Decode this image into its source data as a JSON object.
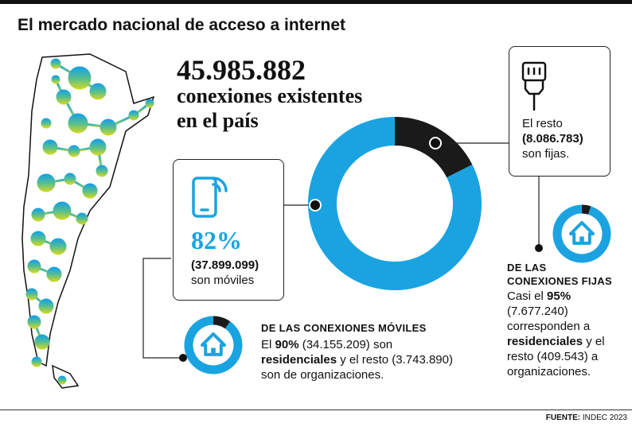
{
  "header": {
    "title": "El mercado nacional de acceso a internet"
  },
  "headline": {
    "total": "45.985.882",
    "line1": "conexiones existentes",
    "line2": "en el país"
  },
  "mobile": {
    "pct": "82%",
    "count": "(37.899.099)",
    "label": "son móviles"
  },
  "fixed": {
    "line1": "El resto",
    "count": "(8.086.783)",
    "line2": "son fijas."
  },
  "mobile_detail": {
    "heading": "DE LAS CONEXIONES MÓVILES",
    "l1a": "El ",
    "l1b": "90%",
    "l1c": " (34.155.209) son",
    "l2a": "residenciales",
    "l2b": " y el resto (3.743.890)",
    "l3": "son de organizaciones."
  },
  "fixed_detail": {
    "heading1": "DE LAS",
    "heading2": "CONEXIONES FIJAS",
    "l1a": "Casi el ",
    "l1b": "95%",
    "l2": "(7.677.240)",
    "l3": "corresponden a",
    "l4a": "residenciales",
    "l4b": " y el",
    "l5": "resto (409.543) a",
    "l6": "organizaciones."
  },
  "footer": {
    "source_label": "FUENTE:",
    "source_value": " INDEC 2023"
  },
  "colors": {
    "mobile": "#1aa3e0",
    "fixed": "#1a1a1a",
    "map_top": "#1aa3e0",
    "map_bottom": "#c8d62a"
  },
  "icons": [
    "phone-wifi-icon",
    "ethernet-plug-icon",
    "home-icon"
  ],
  "chart_data": [
    {
      "type": "pie",
      "categories": [
        "móviles",
        "fijas"
      ],
      "values": [
        37899099,
        8086783
      ],
      "percent": [
        82,
        18
      ]
    },
    {
      "type": "pie",
      "categories": [
        "residenciales",
        "organizaciones"
      ],
      "values": [
        34155209,
        3743890
      ],
      "percent": [
        90,
        10
      ]
    },
    {
      "type": "pie",
      "categories": [
        "residenciales",
        "organizaciones"
      ],
      "values": [
        7677240,
        409543
      ],
      "percent": [
        95,
        5
      ]
    }
  ]
}
